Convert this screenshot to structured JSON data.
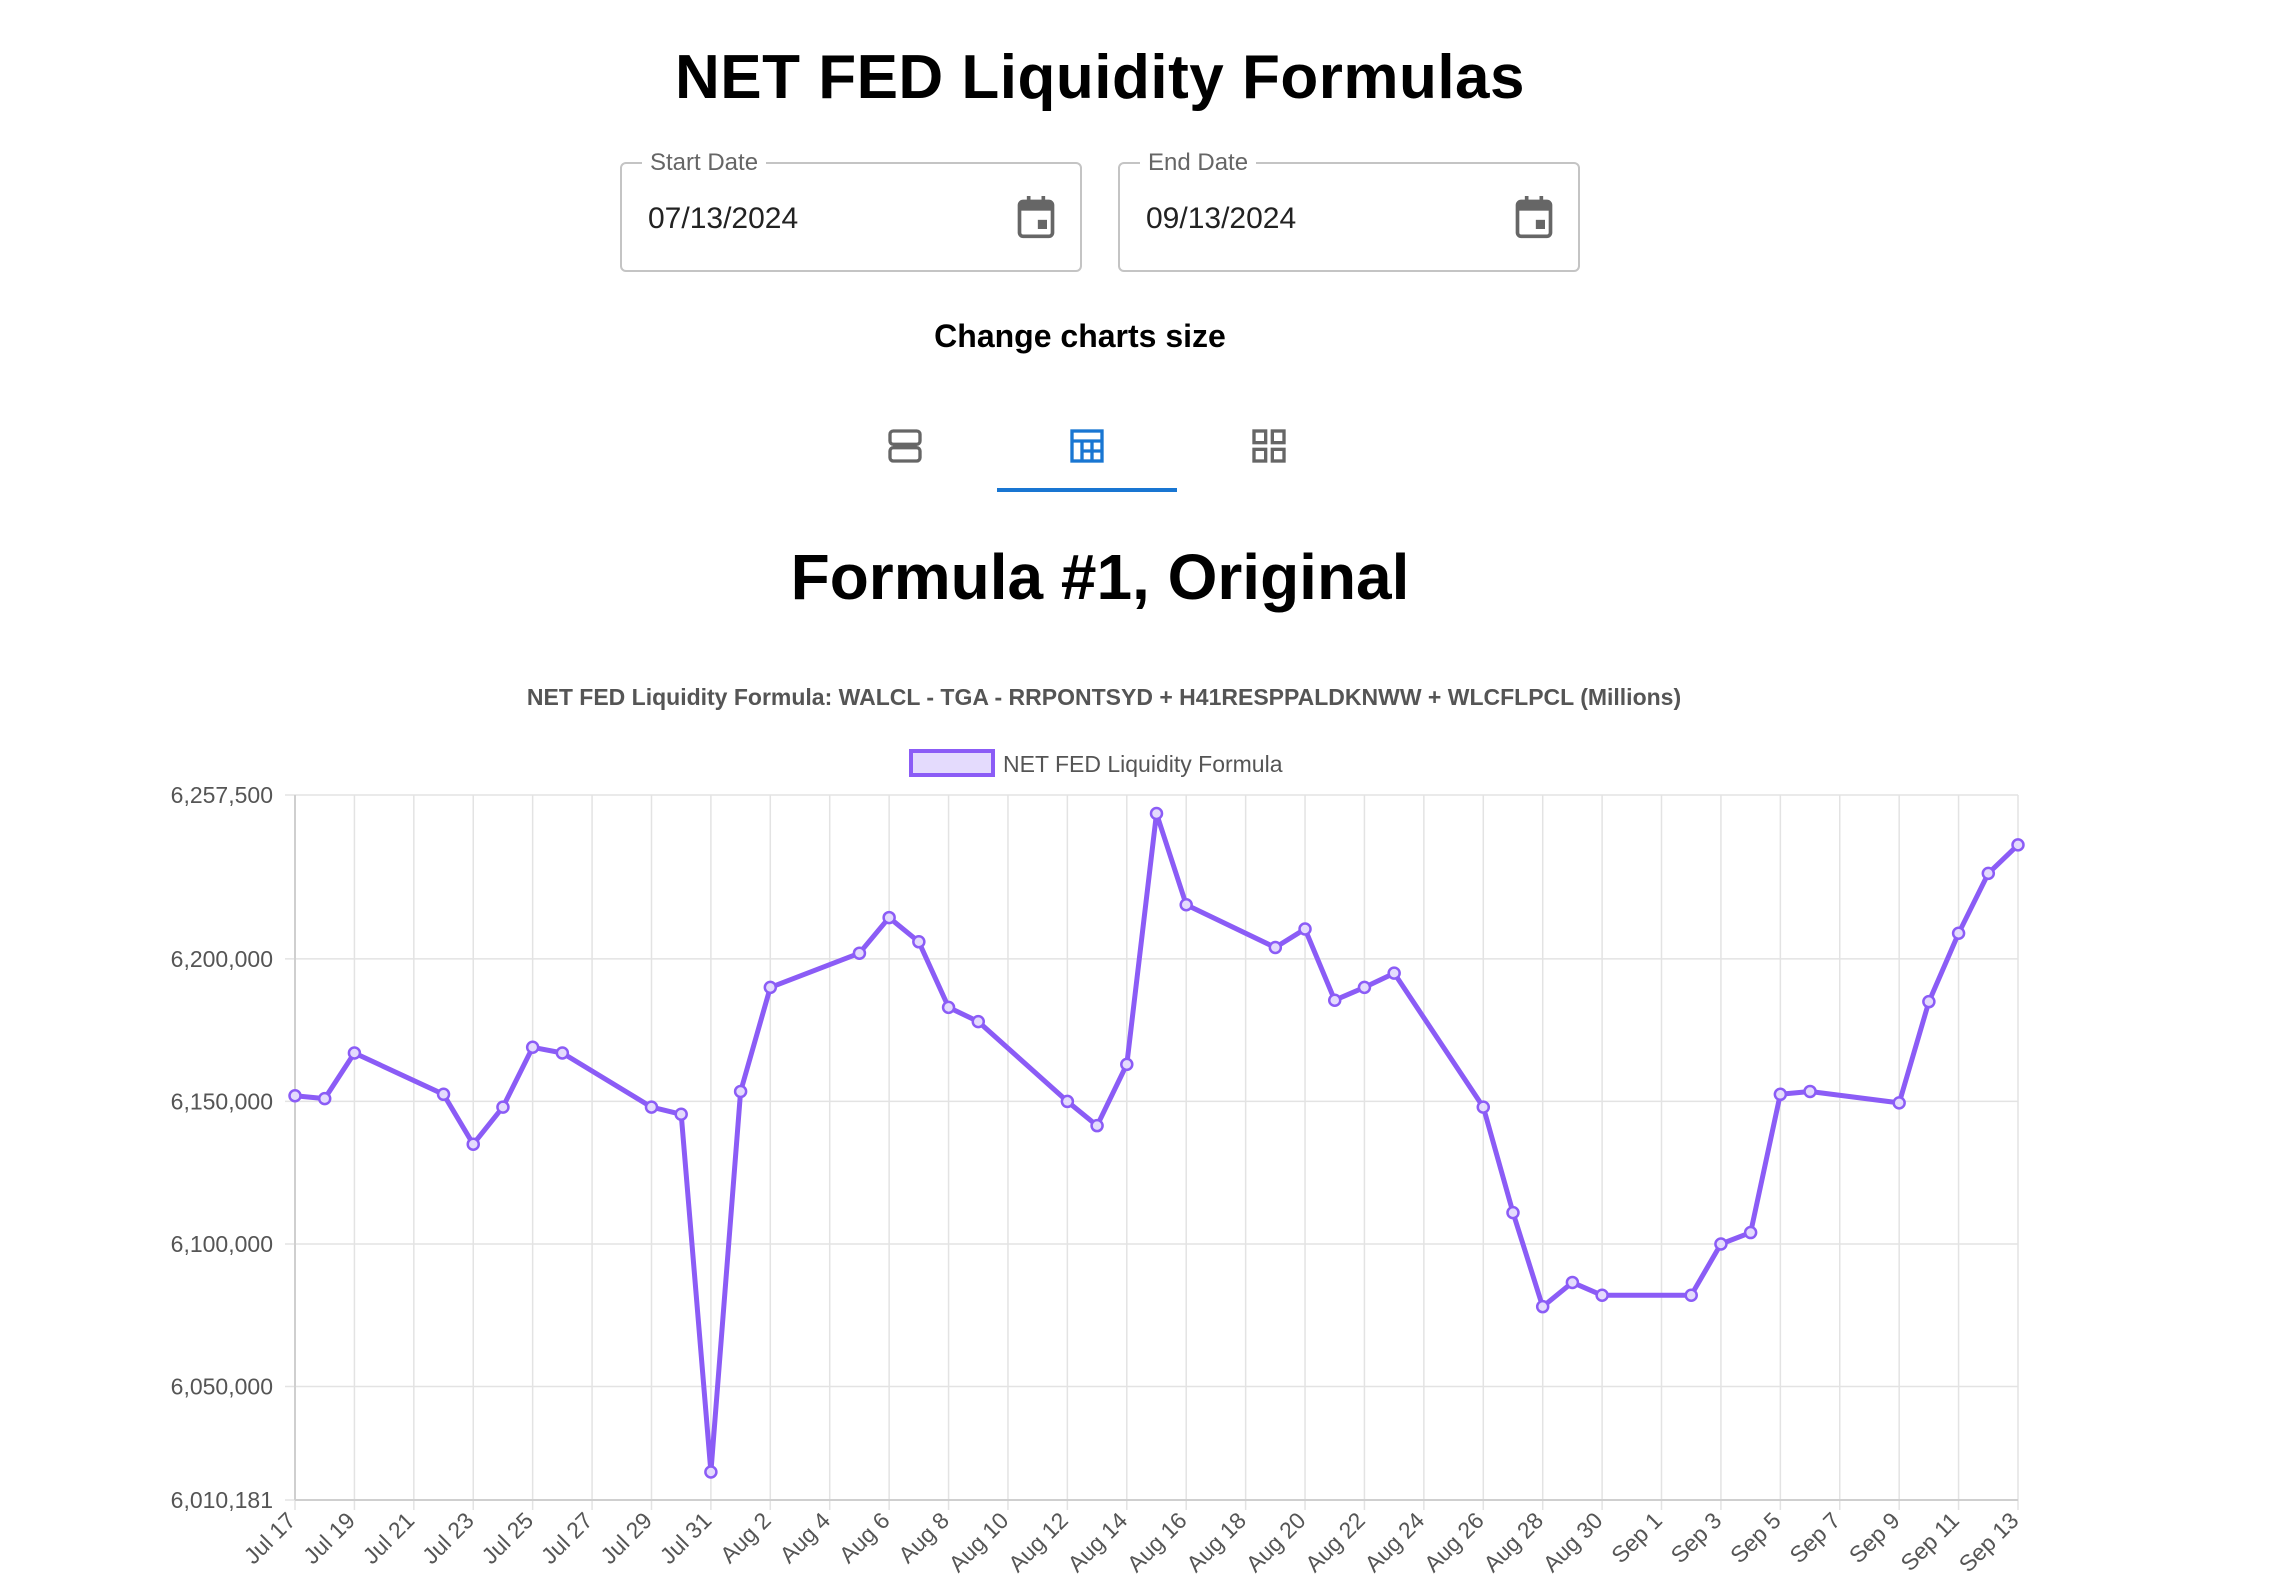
{
  "page": {
    "title": "NET FED Liquidity Formulas",
    "subtitle": "Change charts size"
  },
  "date_range": {
    "start": {
      "label": "Start Date",
      "value": "07/13/2024"
    },
    "end": {
      "label": "End Date",
      "value": "09/13/2024"
    }
  },
  "tabs": [
    {
      "icon": "rows-layout-icon",
      "active": false
    },
    {
      "icon": "dashboard-layout-icon",
      "active": true
    },
    {
      "icon": "grid-layout-icon",
      "active": false
    }
  ],
  "section": {
    "title": "Formula #1, Original"
  },
  "colors": {
    "line": "#8b5cf6",
    "fill": "#e4dbfd",
    "active_tab": "#1976d2",
    "grid": "#e3e3e3",
    "text": "#555555"
  },
  "chart_data": {
    "type": "line",
    "title": "NET FED Liquidity Formula: WALCL - TGA - RRPONTSYD + H41RESPPALDKNWW + WLCFLPCL (Millions)",
    "legend_position": "top",
    "grid": true,
    "ylim": [
      6010181,
      6257500
    ],
    "xlim": [
      "2024-07-17",
      "2024-09-13"
    ],
    "y_ticks": [
      {
        "value": 6010181,
        "label": "6,010,181"
      },
      {
        "value": 6050000,
        "label": "6,050,000"
      },
      {
        "value": 6100000,
        "label": "6,100,000"
      },
      {
        "value": 6150000,
        "label": "6,150,000"
      },
      {
        "value": 6200000,
        "label": "6,200,000"
      },
      {
        "value": 6257500,
        "label": "6,257,500"
      }
    ],
    "x_ticks": [
      {
        "date": "2024-07-17",
        "label": "Jul 17"
      },
      {
        "date": "2024-07-19",
        "label": "Jul 19"
      },
      {
        "date": "2024-07-21",
        "label": "Jul 21"
      },
      {
        "date": "2024-07-23",
        "label": "Jul 23"
      },
      {
        "date": "2024-07-25",
        "label": "Jul 25"
      },
      {
        "date": "2024-07-27",
        "label": "Jul 27"
      },
      {
        "date": "2024-07-29",
        "label": "Jul 29"
      },
      {
        "date": "2024-07-31",
        "label": "Jul 31"
      },
      {
        "date": "2024-08-02",
        "label": "Aug 2"
      },
      {
        "date": "2024-08-04",
        "label": "Aug 4"
      },
      {
        "date": "2024-08-06",
        "label": "Aug 6"
      },
      {
        "date": "2024-08-08",
        "label": "Aug 8"
      },
      {
        "date": "2024-08-10",
        "label": "Aug 10"
      },
      {
        "date": "2024-08-12",
        "label": "Aug 12"
      },
      {
        "date": "2024-08-14",
        "label": "Aug 14"
      },
      {
        "date": "2024-08-16",
        "label": "Aug 16"
      },
      {
        "date": "2024-08-18",
        "label": "Aug 18"
      },
      {
        "date": "2024-08-20",
        "label": "Aug 20"
      },
      {
        "date": "2024-08-22",
        "label": "Aug 22"
      },
      {
        "date": "2024-08-24",
        "label": "Aug 24"
      },
      {
        "date": "2024-08-26",
        "label": "Aug 26"
      },
      {
        "date": "2024-08-28",
        "label": "Aug 28"
      },
      {
        "date": "2024-08-30",
        "label": "Aug 30"
      },
      {
        "date": "2024-09-01",
        "label": "Sep 1"
      },
      {
        "date": "2024-09-03",
        "label": "Sep 3"
      },
      {
        "date": "2024-09-05",
        "label": "Sep 5"
      },
      {
        "date": "2024-09-07",
        "label": "Sep 7"
      },
      {
        "date": "2024-09-09",
        "label": "Sep 9"
      },
      {
        "date": "2024-09-11",
        "label": "Sep 11"
      },
      {
        "date": "2024-09-13",
        "label": "Sep 13"
      }
    ],
    "series": [
      {
        "name": "NET FED Liquidity Formula",
        "points": [
          {
            "x": "2024-07-17",
            "y": 6152000
          },
          {
            "x": "2024-07-18",
            "y": 6151000
          },
          {
            "x": "2024-07-19",
            "y": 6167000
          },
          {
            "x": "2024-07-22",
            "y": 6152500
          },
          {
            "x": "2024-07-23",
            "y": 6135000
          },
          {
            "x": "2024-07-24",
            "y": 6148000
          },
          {
            "x": "2024-07-25",
            "y": 6169000
          },
          {
            "x": "2024-07-26",
            "y": 6167000
          },
          {
            "x": "2024-07-29",
            "y": 6148000
          },
          {
            "x": "2024-07-30",
            "y": 6145500
          },
          {
            "x": "2024-07-31",
            "y": 6020000
          },
          {
            "x": "2024-08-01",
            "y": 6153500
          },
          {
            "x": "2024-08-02",
            "y": 6190000
          },
          {
            "x": "2024-08-05",
            "y": 6202000
          },
          {
            "x": "2024-08-06",
            "y": 6214500
          },
          {
            "x": "2024-08-07",
            "y": 6206000
          },
          {
            "x": "2024-08-08",
            "y": 6183000
          },
          {
            "x": "2024-08-09",
            "y": 6178000
          },
          {
            "x": "2024-08-12",
            "y": 6150000
          },
          {
            "x": "2024-08-13",
            "y": 6141500
          },
          {
            "x": "2024-08-14",
            "y": 6163000
          },
          {
            "x": "2024-08-15",
            "y": 6251000
          },
          {
            "x": "2024-08-16",
            "y": 6219000
          },
          {
            "x": "2024-08-19",
            "y": 6204000
          },
          {
            "x": "2024-08-20",
            "y": 6210500
          },
          {
            "x": "2024-08-21",
            "y": 6185500
          },
          {
            "x": "2024-08-22",
            "y": 6190000
          },
          {
            "x": "2024-08-23",
            "y": 6195000
          },
          {
            "x": "2024-08-26",
            "y": 6148000
          },
          {
            "x": "2024-08-27",
            "y": 6111000
          },
          {
            "x": "2024-08-28",
            "y": 6078000
          },
          {
            "x": "2024-08-29",
            "y": 6086500
          },
          {
            "x": "2024-08-30",
            "y": 6082000
          },
          {
            "x": "2024-09-02",
            "y": 6082000
          },
          {
            "x": "2024-09-03",
            "y": 6100000
          },
          {
            "x": "2024-09-04",
            "y": 6104000
          },
          {
            "x": "2024-09-05",
            "y": 6152500
          },
          {
            "x": "2024-09-06",
            "y": 6153500
          },
          {
            "x": "2024-09-09",
            "y": 6149500
          },
          {
            "x": "2024-09-10",
            "y": 6185000
          },
          {
            "x": "2024-09-11",
            "y": 6209000
          },
          {
            "x": "2024-09-12",
            "y": 6230000
          },
          {
            "x": "2024-09-13",
            "y": 6240000
          }
        ]
      }
    ]
  }
}
